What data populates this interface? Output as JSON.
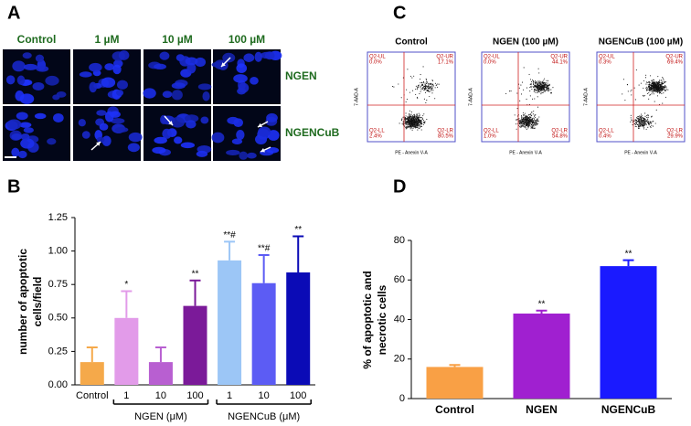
{
  "panel_labels": [
    "A",
    "B",
    "C",
    "D"
  ],
  "microscopy": {
    "columns": [
      "Control",
      "1 µM",
      "10 µM",
      "100 µM"
    ],
    "rows": [
      "NGEN",
      "NGENCuB"
    ]
  },
  "flow_cytometry": {
    "x_label": "PE - Anexin V-A",
    "y_label": "7-AAD-A",
    "plots": [
      {
        "title": "Control",
        "quadrants": {
          "UL": {
            "name": "Q2-UL",
            "value": "0.0%"
          },
          "UR": {
            "name": "Q2-UR",
            "value": "17.1%"
          },
          "LL": {
            "name": "Q2-LL",
            "value": "2.4%"
          },
          "LR": {
            "name": "Q2-LR",
            "value": "80.5%"
          }
        }
      },
      {
        "title": "NGEN (100 µM)",
        "quadrants": {
          "UL": {
            "name": "Q2-UL",
            "value": "0.0%"
          },
          "UR": {
            "name": "Q2-UR",
            "value": "44.1%"
          },
          "LL": {
            "name": "Q2-LL",
            "value": "1.0%"
          },
          "LR": {
            "name": "Q2-LR",
            "value": "54.8%"
          }
        }
      },
      {
        "title": "NGENCuB (100 µM)",
        "quadrants": {
          "UL": {
            "name": "Q2-UL",
            "value": "0.3%"
          },
          "UR": {
            "name": "Q2-UR",
            "value": "69.4%"
          },
          "LL": {
            "name": "Q2-LL",
            "value": "0.4%"
          },
          "LR": {
            "name": "Q2-LR",
            "value": "29.9%"
          }
        }
      }
    ]
  },
  "chart_data": [
    {
      "type": "bar",
      "ylabel_lines": [
        "number of apoptotic",
        "cells/field"
      ],
      "categories": [
        "Control",
        "1",
        "10",
        "100",
        "1",
        "10",
        "100"
      ],
      "values": [
        0.17,
        0.5,
        0.17,
        0.59,
        0.93,
        0.76,
        0.84
      ],
      "errors": [
        0.11,
        0.2,
        0.11,
        0.19,
        0.14,
        0.21,
        0.27
      ],
      "annotations": [
        null,
        "*",
        null,
        "**",
        "**#",
        "**#",
        "**"
      ],
      "colors": [
        "#f5a94a",
        "#e29be9",
        "#b85fd1",
        "#7b1a99",
        "#9cc6f6",
        "#5c5cf4",
        "#0b0bb6"
      ],
      "groups": [
        {
          "label": "NGEN (μM)"
        },
        {
          "label": "NGENCuB (μM)"
        }
      ],
      "ylim": [
        0,
        1.25
      ],
      "yticks": [
        {
          "value": 0,
          "label": "0.00"
        },
        {
          "value": 0.25,
          "label": "0.25"
        },
        {
          "value": 0.5,
          "label": "0.50"
        },
        {
          "value": 0.75,
          "label": "0.75"
        },
        {
          "value": 1,
          "label": "1.00"
        },
        {
          "value": 1.25,
          "label": "1.25"
        }
      ]
    },
    {
      "type": "bar",
      "ylabel_lines": [
        "% of apoptotic and",
        "necrotic cells"
      ],
      "categories": [
        "Control",
        "NGEN",
        "NGENCuB"
      ],
      "values": [
        16,
        43,
        67
      ],
      "errors": [
        1,
        1.5,
        3
      ],
      "annotations": [
        null,
        "**",
        "**"
      ],
      "colors": [
        "#f9a045",
        "#a020d0",
        "#1a1aff"
      ],
      "ylim": [
        0,
        80
      ],
      "yticks": [
        0,
        20,
        40,
        60,
        80
      ]
    }
  ]
}
